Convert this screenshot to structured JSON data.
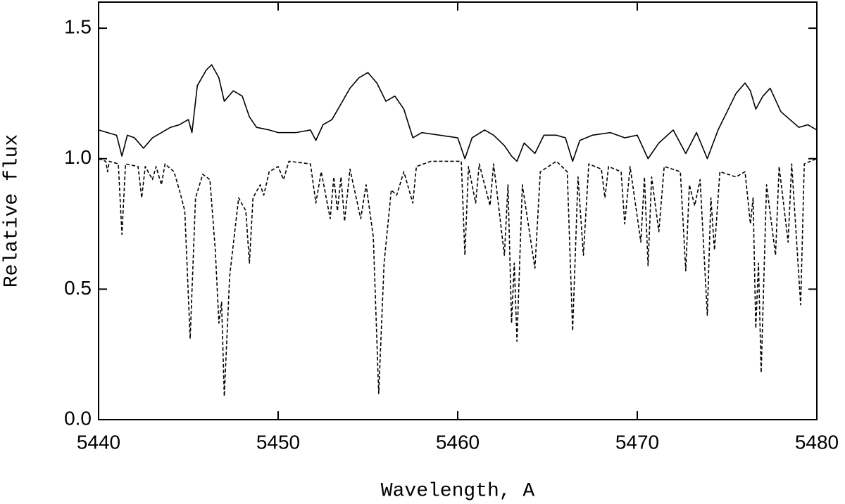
{
  "chart_data": {
    "type": "line",
    "xlabel": "Wavelength, A",
    "ylabel": "Relative flux",
    "xlim": [
      5440,
      5480
    ],
    "ylim": [
      0,
      1.6
    ],
    "xticks": [
      5440,
      5450,
      5460,
      5470,
      5480
    ],
    "yticks": [
      {
        "value": 0,
        "label": "0.0"
      },
      0.5,
      {
        "value": 1,
        "label": "1.0"
      },
      1.5
    ],
    "grid": false,
    "series": [
      {
        "color": "#000000",
        "line_style": "solid",
        "x": [
          5440,
          5440.5,
          5441,
          5441.3,
          5441.6,
          5442,
          5442.5,
          5443,
          5443.5,
          5444,
          5444.5,
          5445,
          5445.2,
          5445.5,
          5446,
          5446.3,
          5446.7,
          5447,
          5447.5,
          5448,
          5448.4,
          5448.8,
          5449.5,
          5450,
          5451,
          5451.8,
          5452.1,
          5452.5,
          5453,
          5453.5,
          5454,
          5454.5,
          5455,
          5455.5,
          5456,
          5456.5,
          5457,
          5457.5,
          5458,
          5459,
          5460,
          5460.4,
          5460.8,
          5461.5,
          5462,
          5462.6,
          5463,
          5463.3,
          5463.7,
          5464.3,
          5464.8,
          5465.5,
          5466,
          5466.4,
          5466.8,
          5467.5,
          5468.5,
          5469.3,
          5470,
          5470.6,
          5471.2,
          5472,
          5472.7,
          5473.3,
          5473.9,
          5474.5,
          5475,
          5475.5,
          5476,
          5476.3,
          5476.6,
          5477,
          5477.4,
          5478,
          5478.5,
          5479,
          5479.5,
          5480
        ],
        "values": [
          1.11,
          1.1,
          1.09,
          1.01,
          1.09,
          1.08,
          1.04,
          1.08,
          1.1,
          1.12,
          1.13,
          1.15,
          1.1,
          1.28,
          1.34,
          1.36,
          1.31,
          1.22,
          1.26,
          1.24,
          1.16,
          1.12,
          1.11,
          1.1,
          1.1,
          1.11,
          1.07,
          1.13,
          1.15,
          1.21,
          1.27,
          1.31,
          1.33,
          1.29,
          1.22,
          1.24,
          1.19,
          1.08,
          1.1,
          1.09,
          1.08,
          1.0,
          1.08,
          1.11,
          1.09,
          1.05,
          1.01,
          0.99,
          1.06,
          1.02,
          1.09,
          1.09,
          1.08,
          0.99,
          1.07,
          1.09,
          1.1,
          1.08,
          1.09,
          1.0,
          1.06,
          1.11,
          1.02,
          1.1,
          1.0,
          1.11,
          1.18,
          1.25,
          1.29,
          1.26,
          1.19,
          1.24,
          1.27,
          1.18,
          1.15,
          1.12,
          1.13,
          1.11
        ]
      },
      {
        "color": "#000000",
        "line_style": "dashed",
        "x": [
          5440,
          5440.4,
          5440.5,
          5440.6,
          5441.1,
          5441.3,
          5441.5,
          5442.2,
          5442.4,
          5442.6,
          5443.0,
          5443.2,
          5443.5,
          5443.7,
          5444.2,
          5444.5,
          5444.8,
          5445.1,
          5445.4,
          5445.8,
          5446.2,
          5446.5,
          5446.7,
          5446.85,
          5447.0,
          5447.3,
          5447.8,
          5448.2,
          5448.4,
          5448.6,
          5449.0,
          5449.2,
          5449.5,
          5450.0,
          5450.3,
          5450.6,
          5451.8,
          5452.1,
          5452.4,
          5452.9,
          5453.1,
          5453.3,
          5453.5,
          5453.7,
          5454.0,
          5454.6,
          5454.9,
          5455.3,
          5455.6,
          5455.9,
          5456.3,
          5456.6,
          5457.0,
          5457.5,
          5457.7,
          5458.5,
          5460.2,
          5460.4,
          5460.6,
          5461.0,
          5461.2,
          5461.8,
          5462.0,
          5462.6,
          5462.8,
          5463.0,
          5463.15,
          5463.3,
          5463.6,
          5464.3,
          5464.6,
          5465.5,
          5466.1,
          5466.4,
          5466.7,
          5467.0,
          5467.3,
          5468.0,
          5468.2,
          5468.4,
          5469.1,
          5469.3,
          5469.6,
          5470.2,
          5470.4,
          5470.6,
          5470.8,
          5471.2,
          5471.5,
          5472.4,
          5472.7,
          5472.9,
          5473.2,
          5473.5,
          5473.9,
          5474.1,
          5474.3,
          5474.6,
          5475.5,
          5476.0,
          5476.3,
          5476.45,
          5476.6,
          5476.75,
          5476.9,
          5477.2,
          5477.7,
          5477.9,
          5478.4,
          5478.6,
          5479.1,
          5479.3,
          5480
        ],
        "values": [
          1.0,
          0.99,
          0.95,
          0.99,
          0.98,
          0.71,
          0.98,
          0.97,
          0.85,
          0.97,
          0.92,
          0.97,
          0.9,
          0.98,
          0.95,
          0.88,
          0.8,
          0.31,
          0.85,
          0.94,
          0.92,
          0.65,
          0.37,
          0.45,
          0.09,
          0.55,
          0.85,
          0.8,
          0.6,
          0.85,
          0.9,
          0.86,
          0.95,
          0.97,
          0.92,
          0.99,
          0.98,
          0.83,
          0.95,
          0.77,
          0.93,
          0.8,
          0.93,
          0.76,
          0.96,
          0.77,
          0.9,
          0.7,
          0.1,
          0.6,
          0.88,
          0.86,
          0.95,
          0.83,
          0.97,
          0.99,
          0.99,
          0.63,
          0.97,
          0.83,
          0.98,
          0.82,
          0.98,
          0.63,
          0.9,
          0.37,
          0.6,
          0.3,
          0.9,
          0.58,
          0.95,
          0.99,
          0.95,
          0.34,
          0.93,
          0.63,
          0.98,
          0.96,
          0.85,
          0.97,
          0.95,
          0.75,
          0.97,
          0.68,
          0.93,
          0.59,
          0.93,
          0.72,
          0.97,
          0.95,
          0.57,
          0.9,
          0.82,
          0.92,
          0.4,
          0.85,
          0.65,
          0.95,
          0.93,
          0.95,
          0.75,
          0.85,
          0.35,
          0.6,
          0.18,
          0.9,
          0.63,
          0.97,
          0.68,
          0.98,
          0.44,
          0.98,
          1.0
        ]
      }
    ]
  }
}
